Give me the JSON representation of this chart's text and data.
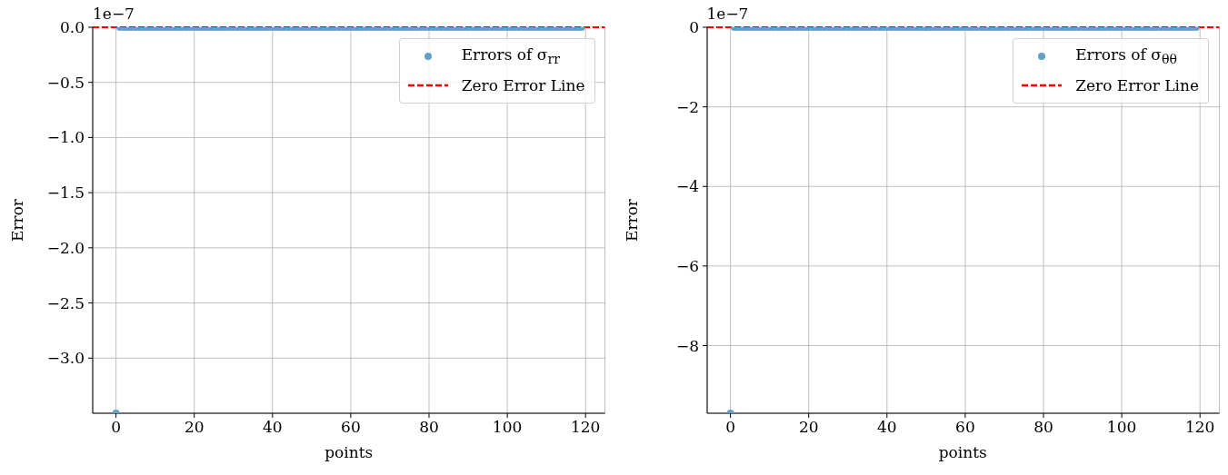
{
  "chart_data": [
    {
      "type": "scatter",
      "xlabel": "points",
      "ylabel": "Error",
      "annotations": [
        "1e−7"
      ],
      "x": [
        0,
        1,
        2,
        3,
        4,
        5,
        6,
        7,
        8,
        9,
        10,
        11,
        12,
        13,
        14,
        15,
        16,
        17,
        18,
        19,
        20,
        21,
        22,
        23,
        24,
        25,
        26,
        27,
        28,
        29,
        30,
        31,
        32,
        33,
        34,
        35,
        36,
        37,
        38,
        39,
        40,
        41,
        42,
        43,
        44,
        45,
        46,
        47,
        48,
        49,
        50,
        51,
        52,
        53,
        54,
        55,
        56,
        57,
        58,
        59,
        60,
        61,
        62,
        63,
        64,
        65,
        66,
        67,
        68,
        69,
        70,
        71,
        72,
        73,
        74,
        75,
        76,
        77,
        78,
        79,
        80,
        81,
        82,
        83,
        84,
        85,
        86,
        87,
        88,
        89,
        90,
        91,
        92,
        93,
        94,
        95,
        96,
        97,
        98,
        99,
        100,
        101,
        102,
        103,
        104,
        105,
        106,
        107,
        108,
        109,
        110,
        111,
        112,
        113,
        114,
        115,
        116,
        117,
        118,
        119
      ],
      "series": [
        {
          "name": "Errors of σ$_{rr}$",
          "color": "#62a0ca",
          "values": [
            -3.5,
            0,
            0,
            0,
            0,
            0,
            0,
            0,
            0,
            0,
            0,
            0,
            0,
            0,
            0,
            0,
            0,
            0,
            0,
            0,
            0,
            0,
            0,
            0,
            0,
            0,
            0,
            0,
            0,
            0,
            0,
            0,
            0,
            0,
            0,
            0,
            0,
            0,
            0,
            0,
            0,
            0,
            0,
            0,
            0,
            0,
            0,
            0,
            0,
            0,
            0,
            0,
            0,
            0,
            0,
            0,
            0,
            0,
            0,
            0,
            0,
            0,
            0,
            0,
            0,
            0,
            0,
            0,
            0,
            0,
            0,
            0,
            0,
            0,
            0,
            0,
            0,
            0,
            0,
            0,
            0,
            0,
            0,
            0,
            0,
            0,
            0,
            0,
            0,
            0,
            0,
            0,
            0,
            0,
            0,
            0,
            0,
            0,
            0,
            0,
            0,
            0,
            0,
            0,
            0,
            0,
            0,
            0,
            0,
            0,
            0,
            0,
            0,
            0,
            0,
            0,
            0,
            0,
            0,
            0
          ]
        }
      ],
      "xlim": [
        -5.95,
        124.95
      ],
      "xticks": [
        0,
        20,
        40,
        60,
        80,
        100,
        120
      ],
      "ylim": [
        -3.5,
        0
      ],
      "yticks": [
        {
          "value": 0,
          "label": "0.0"
        },
        {
          "value": -0.5,
          "label": "−0.5"
        },
        {
          "value": -1,
          "label": "−1.0"
        },
        {
          "value": -1.5,
          "label": "−1.5"
        },
        {
          "value": -2,
          "label": "−2.0"
        },
        {
          "value": -2.5,
          "label": "−2.5"
        },
        {
          "value": -3,
          "label": "−3.0"
        }
      ],
      "ref_lines": [
        {
          "axis": "y",
          "value": 0,
          "label": "Zero Error Line",
          "color": "#ff0000",
          "line_style": "dashed"
        }
      ],
      "grid": true,
      "legend": "top right",
      "marker": "circle"
    },
    {
      "type": "scatter",
      "xlabel": "points",
      "ylabel": "Error",
      "annotations": [
        "1e−7"
      ],
      "x": [
        0,
        1,
        2,
        3,
        4,
        5,
        6,
        7,
        8,
        9,
        10,
        11,
        12,
        13,
        14,
        15,
        16,
        17,
        18,
        19,
        20,
        21,
        22,
        23,
        24,
        25,
        26,
        27,
        28,
        29,
        30,
        31,
        32,
        33,
        34,
        35,
        36,
        37,
        38,
        39,
        40,
        41,
        42,
        43,
        44,
        45,
        46,
        47,
        48,
        49,
        50,
        51,
        52,
        53,
        54,
        55,
        56,
        57,
        58,
        59,
        60,
        61,
        62,
        63,
        64,
        65,
        66,
        67,
        68,
        69,
        70,
        71,
        72,
        73,
        74,
        75,
        76,
        77,
        78,
        79,
        80,
        81,
        82,
        83,
        84,
        85,
        86,
        87,
        88,
        89,
        90,
        91,
        92,
        93,
        94,
        95,
        96,
        97,
        98,
        99,
        100,
        101,
        102,
        103,
        104,
        105,
        106,
        107,
        108,
        109,
        110,
        111,
        112,
        113,
        114,
        115,
        116,
        117,
        118,
        119
      ],
      "series": [
        {
          "name": "Errors of σ$_{θθ}$",
          "color": "#62a0ca",
          "values": [
            -9.7,
            0,
            0,
            0,
            0,
            0,
            0,
            0,
            0,
            0,
            0,
            0,
            0,
            0,
            0,
            0,
            0,
            0,
            0,
            0,
            0,
            0,
            0,
            0,
            0,
            0,
            0,
            0,
            0,
            0,
            0,
            0,
            0,
            0,
            0,
            0,
            0,
            0,
            0,
            0,
            0,
            0,
            0,
            0,
            0,
            0,
            0,
            0,
            0,
            0,
            0,
            0,
            0,
            0,
            0,
            0,
            0,
            0,
            0,
            0,
            0,
            0,
            0,
            0,
            0,
            0,
            0,
            0,
            0,
            0,
            0,
            0,
            0,
            0,
            0,
            0,
            0,
            0,
            0,
            0,
            0,
            0,
            0,
            0,
            0,
            0,
            0,
            0,
            0,
            0,
            0,
            0,
            0,
            0,
            0,
            0,
            0,
            0,
            0,
            0,
            0,
            0,
            0,
            0,
            0,
            0,
            0,
            0,
            0,
            0,
            0,
            0,
            0,
            0,
            0,
            0,
            0,
            0,
            0,
            0
          ]
        }
      ],
      "xlim": [
        -5.95,
        124.95
      ],
      "xticks": [
        0,
        20,
        40,
        60,
        80,
        100,
        120
      ],
      "ylim": [
        -9.7,
        0
      ],
      "yticks": [
        {
          "value": 0,
          "label": "0"
        },
        {
          "value": -2,
          "label": "−2"
        },
        {
          "value": -4,
          "label": "−4"
        },
        {
          "value": -6,
          "label": "−6"
        },
        {
          "value": -8,
          "label": "−8"
        }
      ],
      "ref_lines": [
        {
          "axis": "y",
          "value": 0,
          "label": "Zero Error Line",
          "color": "#ff0000",
          "line_style": "dashed"
        }
      ],
      "grid": true,
      "legend": "top right",
      "marker": "circle"
    }
  ]
}
